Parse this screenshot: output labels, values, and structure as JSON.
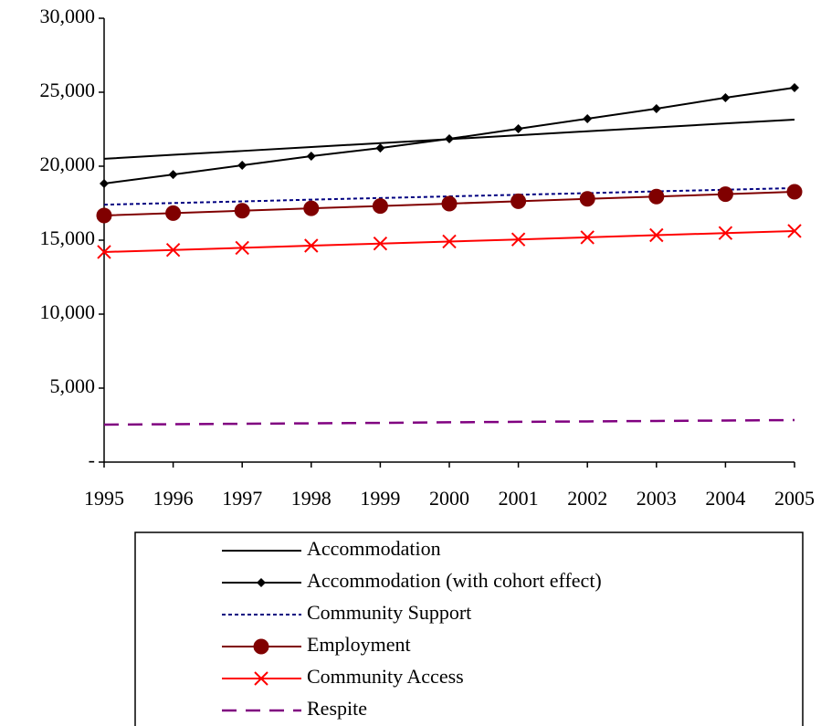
{
  "chart_data": {
    "type": "line",
    "categories": [
      "1995",
      "1996",
      "1997",
      "1998",
      "1999",
      "2000",
      "2001",
      "2002",
      "2003",
      "2004",
      "2005"
    ],
    "ylim": [
      0,
      30000
    ],
    "yticks": [
      {
        "value": 0,
        "label": "-"
      },
      {
        "value": 5000,
        "label": "5,000"
      },
      {
        "value": 10000,
        "label": "10,000"
      },
      {
        "value": 15000,
        "label": "15,000"
      },
      {
        "value": 20000,
        "label": "20,000"
      },
      {
        "value": 25000,
        "label": "25,000"
      },
      {
        "value": 30000,
        "label": "30,000"
      }
    ],
    "grid": false,
    "legend": "bottom",
    "series": [
      {
        "name": "Accommodation",
        "color": "#000000",
        "dash": "solid",
        "marker": "none",
        "values": [
          20500,
          20770,
          21030,
          21300,
          21560,
          21830,
          22090,
          22360,
          22620,
          22890,
          23150
        ]
      },
      {
        "name": "Accommodation (with cohort effect)",
        "color": "#000000",
        "dash": "solid",
        "marker": "diamond",
        "values": [
          18830,
          19440,
          20060,
          20680,
          21230,
          21850,
          22530,
          23210,
          23890,
          24630,
          25310
        ]
      },
      {
        "name": "Community Support",
        "color": "#000080",
        "dash": "dotted",
        "marker": "none",
        "values": [
          17400,
          17510,
          17620,
          17740,
          17850,
          17960,
          18070,
          18180,
          18300,
          18410,
          18520
        ]
      },
      {
        "name": "Employment",
        "color": "#800000",
        "dash": "solid",
        "marker": "circle",
        "values": [
          16670,
          16830,
          16990,
          17150,
          17310,
          17470,
          17630,
          17790,
          17950,
          18110,
          18270
        ]
      },
      {
        "name": "Community Access",
        "color": "#ff0000",
        "dash": "solid",
        "marker": "x",
        "values": [
          14200,
          14340,
          14480,
          14630,
          14770,
          14910,
          15050,
          15190,
          15340,
          15480,
          15620
        ]
      },
      {
        "name": "Respite",
        "color": "#800080",
        "dash": "dashed",
        "marker": "none",
        "values": [
          2530,
          2560,
          2590,
          2620,
          2650,
          2690,
          2720,
          2750,
          2780,
          2810,
          2840
        ]
      }
    ]
  }
}
